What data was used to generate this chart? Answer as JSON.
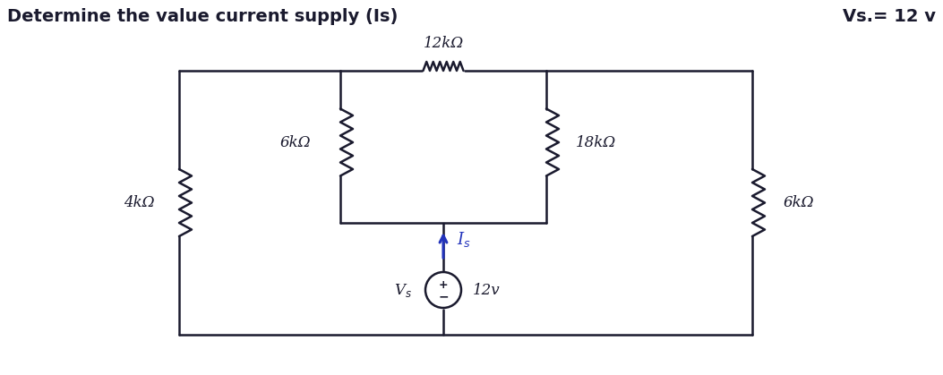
{
  "title_left": "Determine the value current supply (Is)",
  "title_right": "Vs.= 12 v",
  "bg_color": "#ffffff",
  "line_color": "#1a1a2e",
  "arrow_color": "#2233bb",
  "figsize": [
    10.53,
    4.19
  ],
  "dpi": 100,
  "labels": {
    "R_top": "12kΩ",
    "R_left_inner": "6kΩ",
    "R_right_inner": "18kΩ",
    "R_outer_left": "4kΩ",
    "R_outer_right": "6kΩ",
    "Is": "I$_s$",
    "Vs": "V$_s$",
    "voltage": "12v"
  }
}
